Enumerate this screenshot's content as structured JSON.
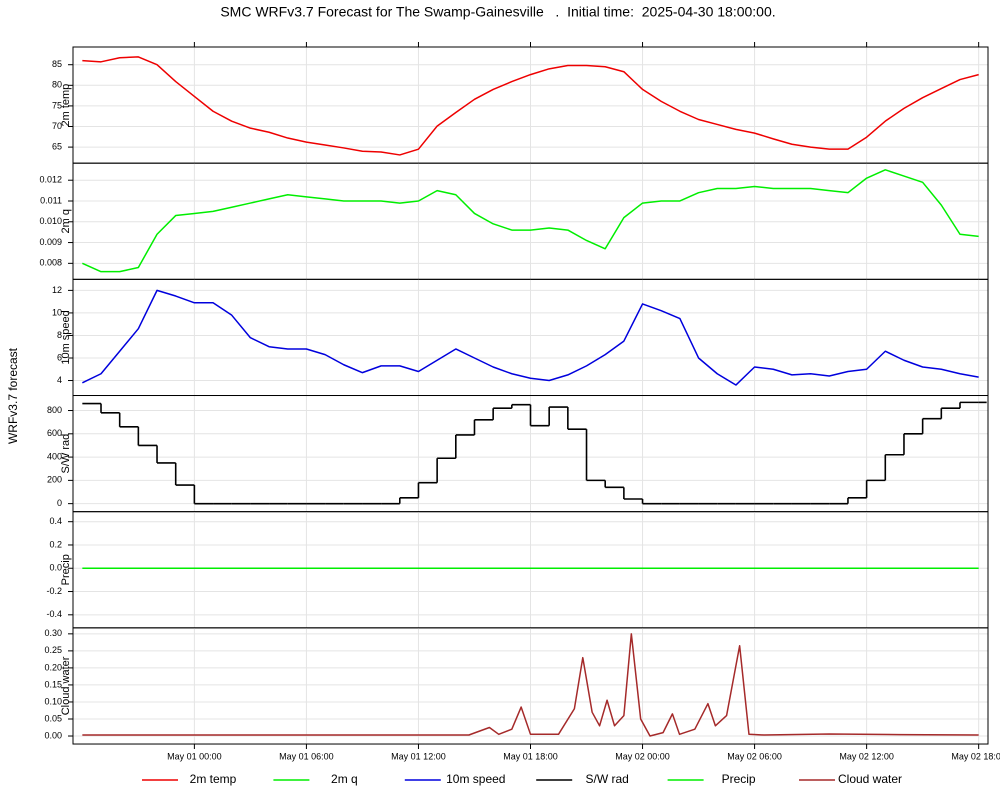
{
  "chart_data": {
    "type": "line",
    "title": "SMC WRFv3.7 Forecast for The Swamp-Gainesville   .  Initial time:  2025-04-30 18:00:00.",
    "ylabel": "WRFv3.7 forecast",
    "x": [
      0,
      1,
      2,
      3,
      4,
      5,
      6,
      7,
      8,
      9,
      10,
      11,
      12,
      13,
      14,
      15,
      16,
      17,
      18,
      19,
      20,
      21,
      22,
      23,
      24,
      25,
      26,
      27,
      28,
      29,
      30,
      31,
      32,
      33,
      34,
      35,
      36,
      37,
      38,
      39,
      40,
      41,
      42,
      43,
      44,
      45,
      46,
      47,
      48
    ],
    "xlim": [
      -0.5,
      48.5
    ],
    "xticks": [
      {
        "value": 6,
        "label": "May 01 00:00"
      },
      {
        "value": 12,
        "label": "May 01 06:00"
      },
      {
        "value": 18,
        "label": "May 01 12:00"
      },
      {
        "value": 24,
        "label": "May 01 18:00"
      },
      {
        "value": 30,
        "label": "May 02 00:00"
      },
      {
        "value": 36,
        "label": "May 02 06:00"
      },
      {
        "value": 42,
        "label": "May 02 12:00"
      },
      {
        "value": 48,
        "label": "May 02 18:00"
      }
    ],
    "grid": true,
    "series": [
      {
        "name": "2m temp",
        "color": "#ee0000",
        "ylim": [
          61.1,
          89.3
        ],
        "yticks": [
          65,
          70,
          75,
          80,
          85
        ],
        "values": [
          86,
          85.7,
          86.7,
          86.9,
          85,
          80.9,
          77.3,
          73.7,
          71.3,
          69.6,
          68.6,
          67.2,
          66.2,
          65.5,
          64.8,
          64.0,
          63.8,
          63.1,
          64.5,
          70.1,
          73.4,
          76.6,
          79,
          80.9,
          82.6,
          84,
          84.8,
          84.8,
          84.5,
          83.3,
          79,
          76.1,
          73.7,
          71.7,
          70.5,
          69.3,
          68.4,
          67,
          65.7,
          65,
          64.5,
          64.5,
          67.4,
          71.3,
          74.4,
          77,
          79.2,
          81.4,
          82.6
        ]
      },
      {
        "name": "2m q",
        "color": "#00ee00",
        "ylim": [
          0.00723,
          0.01282
        ],
        "yticks": [
          0.008,
          0.009,
          {
            "value": 0.01,
            "label": "0.010"
          },
          0.011,
          0.012
        ],
        "values": [
          0.008,
          0.0076,
          0.0076,
          0.0078,
          0.0094,
          0.0103,
          0.0104,
          0.0105,
          0.0107,
          0.0109,
          0.0111,
          0.0113,
          0.0112,
          0.0111,
          0.011,
          0.011,
          0.011,
          0.0109,
          0.011,
          0.0115,
          0.0113,
          0.0104,
          0.0099,
          0.0096,
          0.0096,
          0.0097,
          0.0096,
          0.0091,
          0.0087,
          0.0102,
          0.0109,
          0.011,
          0.011,
          0.0114,
          0.0116,
          0.0116,
          0.0117,
          0.0116,
          0.0116,
          0.0116,
          0.0115,
          0.0114,
          0.0121,
          0.0125,
          0.0122,
          0.0119,
          0.0108,
          0.0094,
          0.0093
        ]
      },
      {
        "name": "10m speed",
        "color": "#0000dd",
        "ylim": [
          2.67,
          12.98
        ],
        "yticks": [
          4,
          6,
          8,
          10,
          12
        ],
        "values": [
          3.8,
          4.6,
          6.6,
          8.6,
          12.0,
          11.5,
          10.9,
          10.9,
          9.8,
          7.8,
          7.0,
          6.8,
          6.8,
          6.3,
          5.4,
          4.7,
          5.3,
          5.3,
          4.8,
          5.8,
          6.8,
          6.0,
          5.2,
          4.6,
          4.2,
          4.0,
          4.5,
          5.3,
          6.3,
          7.5,
          10.8,
          10.2,
          9.5,
          6.0,
          4.6,
          3.6,
          5.2,
          5.0,
          4.5,
          4.6,
          4.4,
          4.8,
          5.0,
          6.6,
          5.8,
          5.2,
          5.0,
          4.6,
          4.3
        ]
      },
      {
        "name": "S/W rad",
        "color": "#000000",
        "step": true,
        "ylim": [
          -69,
          929
        ],
        "yticks": [
          0,
          200,
          400,
          600,
          800
        ],
        "values": [
          860,
          780,
          660,
          500,
          350,
          160,
          0,
          0,
          0,
          0,
          0,
          0,
          0,
          0,
          0,
          0,
          0,
          50,
          180,
          390,
          590,
          720,
          820,
          850,
          670,
          830,
          640,
          200,
          140,
          40,
          0,
          0,
          0,
          0,
          0,
          0,
          0,
          0,
          0,
          0,
          0,
          50,
          200,
          420,
          600,
          730,
          820,
          870,
          870
        ]
      },
      {
        "name": "Precip",
        "color": "#00ee00",
        "ylim": [
          -0.512,
          0.486
        ],
        "yticks": [
          -0.4,
          -0.2,
          {
            "value": 0,
            "label": "0.0"
          },
          0.2,
          0.4
        ],
        "values": [
          0,
          0,
          0,
          0,
          0,
          0,
          0,
          0,
          0,
          0,
          0,
          0,
          0,
          0,
          0,
          0,
          0,
          0,
          0,
          0,
          0,
          0,
          0,
          0,
          0,
          0,
          0,
          0,
          0,
          0,
          0,
          0,
          0,
          0,
          0,
          0,
          0,
          0,
          0,
          0,
          0,
          0,
          0,
          0,
          0,
          0,
          0,
          0,
          0
        ]
      },
      {
        "name": "Cloud water",
        "color": "#a52a2a",
        "ylim": [
          -0.0235,
          0.3176
        ],
        "yticks": [
          {
            "value": 0,
            "label": "0.00"
          },
          0.05,
          {
            "value": 0.1,
            "label": "0.10"
          },
          0.15,
          {
            "value": 0.2,
            "label": "0.20"
          },
          0.25,
          {
            "value": 0.3,
            "label": "0.30"
          }
        ],
        "x": [
          0,
          20.7,
          21.8,
          22.3,
          23,
          23.5,
          24,
          25.5,
          26.35,
          26.8,
          27.3,
          27.7,
          28.1,
          28.5,
          29,
          29.4,
          29.9,
          30.4,
          31.1,
          31.6,
          31.98,
          32.8,
          33.5,
          33.9,
          34.5,
          35.2,
          35.7,
          36.5,
          40,
          43.8,
          48
        ],
        "values": [
          0.003,
          0.003,
          0.025,
          0.005,
          0.02,
          0.085,
          0.005,
          0.005,
          0.08,
          0.23,
          0.07,
          0.03,
          0.105,
          0.03,
          0.06,
          0.3,
          0.05,
          0.0,
          0.01,
          0.065,
          0.005,
          0.02,
          0.095,
          0.03,
          0.06,
          0.265,
          0.005,
          0.003,
          0.006,
          0.004,
          0.003
        ]
      }
    ]
  }
}
